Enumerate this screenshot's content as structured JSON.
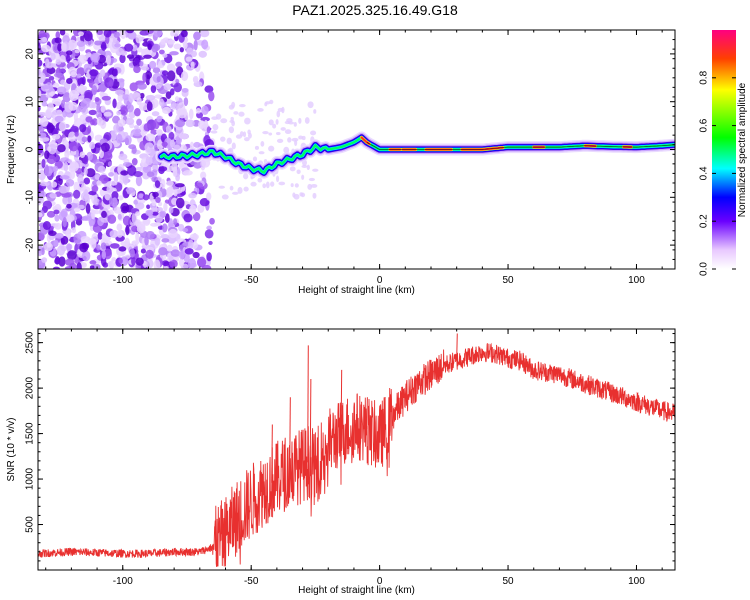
{
  "title": "PAZ1.2025.325.16.49.G18",
  "chart_data": [
    {
      "type": "heatmap",
      "xlabel": "Height of straight line (km)",
      "ylabel": "Frequency (Hz)",
      "xlim": [
        -133,
        115
      ],
      "ylim": [
        -25,
        25
      ],
      "xticks": [
        "-100",
        "-50",
        "0",
        "50",
        "100"
      ],
      "xtick_values": [
        -100,
        -50,
        0,
        50,
        100
      ],
      "yticks": [
        "20",
        "10",
        "0",
        "-10",
        "-20"
      ],
      "ytick_values": [
        20,
        10,
        0,
        -10,
        -20
      ],
      "colorbar": {
        "label": "Normalized spectral amplitude",
        "range": [
          0,
          1
        ],
        "ticks": [
          "0.0",
          "0.2",
          "0.4",
          "0.6",
          "0.8"
        ],
        "tick_values": [
          0.0,
          0.2,
          0.4,
          0.6,
          0.8
        ]
      },
      "ridge": {
        "x": [
          -85,
          -80,
          -75,
          -70,
          -65,
          -60,
          -55,
          -50,
          -45,
          -40,
          -35,
          -30,
          -25,
          -20,
          -15,
          -10,
          -7,
          -5,
          0,
          10,
          20,
          30,
          40,
          50,
          60,
          70,
          80,
          90,
          100,
          110,
          115
        ],
        "y": [
          -1.5,
          -1.5,
          -1.3,
          -1,
          -0.5,
          -1.5,
          -3,
          -4,
          -4.5,
          -3,
          -2,
          -1,
          0.5,
          0,
          0.5,
          1.5,
          2.5,
          1.5,
          0,
          0,
          0,
          0,
          0,
          0.5,
          0.5,
          0.5,
          0.8,
          0.6,
          0.5,
          0.8,
          1.0
        ]
      }
    },
    {
      "type": "line",
      "xlabel": "Height of straight line (km)",
      "ylabel": "SNR (10 * v/v)",
      "xlim": [
        -133,
        115
      ],
      "ylim": [
        0,
        2650
      ],
      "xticks": [
        "-100",
        "-50",
        "0",
        "50",
        "100"
      ],
      "xtick_values": [
        -100,
        -50,
        0,
        50,
        100
      ],
      "yticks": [
        "500",
        "1000",
        "1500",
        "2000",
        "2500"
      ],
      "ytick_values": [
        500,
        1000,
        1500,
        2000,
        2500
      ],
      "series": [
        {
          "name": "SNR",
          "color": "#e8302f",
          "x": [
            -133,
            -120,
            -100,
            -90,
            -80,
            -70,
            -65,
            -60,
            -55,
            -50,
            -45,
            -40,
            -35,
            -30,
            -27,
            -25,
            -22,
            -20,
            -15,
            -10,
            -5,
            0,
            5,
            10,
            15,
            20,
            25,
            30,
            35,
            40,
            45,
            50,
            55,
            60,
            70,
            80,
            90,
            100,
            105,
            110,
            115
          ],
          "y": [
            180,
            200,
            180,
            180,
            200,
            200,
            250,
            400,
            600,
            750,
            900,
            1000,
            1100,
            1150,
            1200,
            1100,
            1300,
            1400,
            1500,
            1600,
            1550,
            1450,
            1700,
            1900,
            2050,
            2150,
            2250,
            2300,
            2350,
            2400,
            2380,
            2330,
            2300,
            2200,
            2150,
            2050,
            1950,
            1850,
            1800,
            1750,
            1720
          ]
        }
      ],
      "annotations": {
        "spike_x": [
          -42,
          -35,
          -28,
          -27,
          -15,
          -5,
          30
        ],
        "spike_y": [
          1600,
          1900,
          2470,
          2100,
          2200,
          1900,
          2600
        ]
      }
    }
  ]
}
